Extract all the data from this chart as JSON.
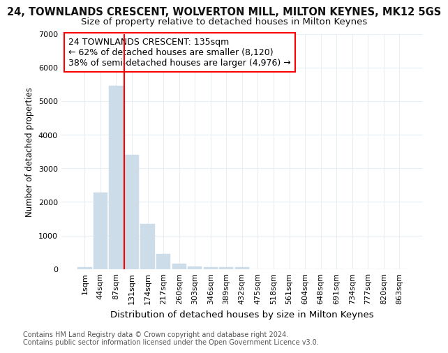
{
  "title": "24, TOWNLANDS CRESCENT, WOLVERTON MILL, MILTON KEYNES, MK12 5GS",
  "subtitle": "Size of property relative to detached houses in Milton Keynes",
  "xlabel": "Distribution of detached houses by size in Milton Keynes",
  "ylabel": "Number of detached properties",
  "categories": [
    "1sqm",
    "44sqm",
    "87sqm",
    "131sqm",
    "174sqm",
    "217sqm",
    "260sqm",
    "303sqm",
    "346sqm",
    "389sqm",
    "432sqm",
    "475sqm",
    "518sqm",
    "561sqm",
    "604sqm",
    "648sqm",
    "691sqm",
    "734sqm",
    "777sqm",
    "820sqm",
    "863sqm"
  ],
  "values": [
    60,
    2270,
    5450,
    3400,
    1350,
    450,
    150,
    80,
    60,
    60,
    60,
    0,
    0,
    0,
    0,
    0,
    0,
    0,
    0,
    0,
    0
  ],
  "bar_color": "#ccdce8",
  "vline_x": 2.5,
  "annotation_text_line1": "24 TOWNLANDS CRESCENT: 135sqm",
  "annotation_text_line2": "← 62% of detached houses are smaller (8,120)",
  "annotation_text_line3": "38% of semi-detached houses are larger (4,976) →",
  "ylim": [
    0,
    7000
  ],
  "yticks": [
    0,
    1000,
    2000,
    3000,
    4000,
    5000,
    6000,
    7000
  ],
  "footer_line1": "Contains HM Land Registry data © Crown copyright and database right 2024.",
  "footer_line2": "Contains public sector information licensed under the Open Government Licence v3.0.",
  "background_color": "#ffffff",
  "plot_bg_color": "#ffffff",
  "grid_color": "#e8eef4",
  "title_fontsize": 10.5,
  "subtitle_fontsize": 9.5,
  "xlabel_fontsize": 9.5,
  "ylabel_fontsize": 8.5,
  "tick_fontsize": 8,
  "annotation_fontsize": 9,
  "footer_fontsize": 7
}
